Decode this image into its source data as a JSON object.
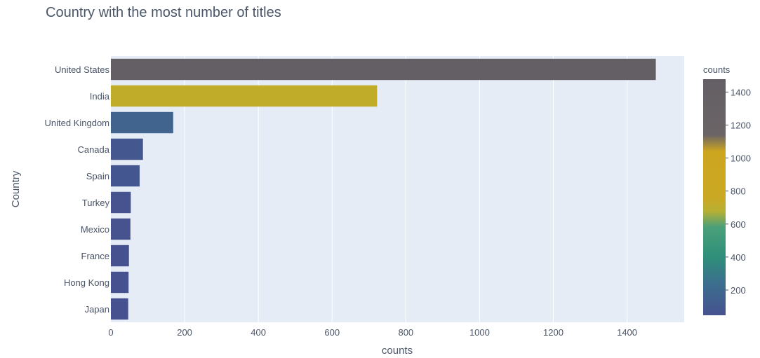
{
  "chart_data": {
    "type": "bar",
    "orientation": "horizontal",
    "title": "Country with the most number of titles",
    "xlabel": "counts",
    "ylabel": "Country",
    "xlim": [
      0,
      1555
    ],
    "x_ticks": [
      0,
      200,
      400,
      600,
      800,
      1000,
      1200,
      1400
    ],
    "categories": [
      "United States",
      "India",
      "United Kingdom",
      "Canada",
      "Spain",
      "Turkey",
      "Mexico",
      "France",
      "Hong Kong",
      "Japan"
    ],
    "values": [
      1478,
      722,
      169,
      87,
      78,
      54,
      53,
      49,
      48,
      47
    ],
    "grid": true,
    "legend": "none",
    "colorbar": {
      "title": "counts",
      "placement": "right",
      "range": [
        47,
        1478
      ],
      "ticks": [
        200,
        400,
        600,
        800,
        1000,
        1200,
        1400
      ],
      "colorscale": [
        {
          "value": 47,
          "color": "#46528f"
        },
        {
          "value": 240,
          "color": "#3c6e8e"
        },
        {
          "value": 400,
          "color": "#2f8f7a"
        },
        {
          "value": 580,
          "color": "#4aa07a"
        },
        {
          "value": 680,
          "color": "#b8b032"
        },
        {
          "value": 760,
          "color": "#caa823"
        },
        {
          "value": 1040,
          "color": "#cda61f"
        },
        {
          "value": 1140,
          "color": "#6a6466"
        },
        {
          "value": 1478,
          "color": "#645f65"
        }
      ]
    },
    "colors": {
      "plot_bg": "#e5ecf6",
      "grid": "#ffffff",
      "text": "#4a5568"
    }
  }
}
